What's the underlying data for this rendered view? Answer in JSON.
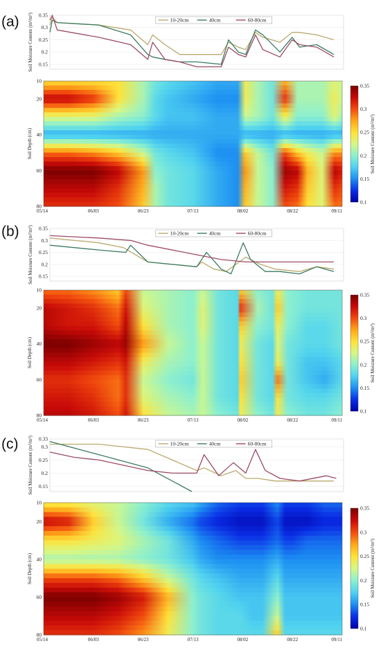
{
  "colors": {
    "line_10_20": "#b9a96c",
    "line_40": "#3b7a5f",
    "line_60_80": "#9c4a63",
    "colormap": [
      "#0000a8",
      "#0a2ee6",
      "#1d8ff2",
      "#4fd2f0",
      "#8cf0cf",
      "#d6f785",
      "#ffe23a",
      "#ffa61a",
      "#f24a0e",
      "#c80a08",
      "#7a0000"
    ]
  },
  "chart_data": [
    {
      "panel": "(a)",
      "type": "line",
      "ylabel": "Soil Moisture Content (m³/m³)",
      "ylim": [
        0.13,
        0.35
      ],
      "yticks": [
        "0.35",
        "0.3",
        "0.25",
        "0.2",
        "0.15"
      ],
      "xlim": [
        "05/14",
        "09/11"
      ],
      "grid": true,
      "legend": "top-center",
      "series": [
        {
          "name": "10-20cm",
          "x": [
            "05/14",
            "05/15",
            "05/17",
            "06/03",
            "06/16",
            "06/23",
            "06/25",
            "06/30",
            "07/06",
            "07/13",
            "07/23",
            "07/26",
            "07/30",
            "08/02",
            "08/06",
            "08/09",
            "08/16",
            "08/21",
            "08/24",
            "08/31",
            "09/07"
          ],
          "y": [
            0.31,
            0.34,
            0.32,
            0.31,
            0.29,
            0.23,
            0.27,
            0.23,
            0.19,
            0.19,
            0.19,
            0.24,
            0.22,
            0.21,
            0.28,
            0.26,
            0.24,
            0.28,
            0.28,
            0.27,
            0.25
          ]
        },
        {
          "name": "40cm",
          "x": [
            "05/14",
            "05/15",
            "05/17",
            "06/03",
            "06/16",
            "06/23",
            "06/25",
            "06/30",
            "07/06",
            "07/13",
            "07/23",
            "07/26",
            "07/30",
            "08/02",
            "08/06",
            "08/09",
            "08/16",
            "08/21",
            "08/24",
            "08/31",
            "09/07"
          ],
          "y": [
            0.28,
            0.33,
            0.32,
            0.31,
            0.27,
            0.19,
            0.18,
            0.17,
            0.16,
            0.16,
            0.15,
            0.25,
            0.2,
            0.19,
            0.29,
            0.27,
            0.2,
            0.26,
            0.22,
            0.23,
            0.19
          ]
        },
        {
          "name": "60-80cm",
          "x": [
            "05/14",
            "05/15",
            "05/17",
            "06/03",
            "06/16",
            "06/23",
            "06/25",
            "06/30",
            "07/06",
            "07/13",
            "07/23",
            "07/26",
            "07/30",
            "08/02",
            "08/06",
            "08/09",
            "08/16",
            "08/21",
            "08/24",
            "08/31",
            "09/07"
          ],
          "y": [
            0.33,
            0.35,
            0.29,
            0.26,
            0.23,
            0.17,
            0.24,
            0.17,
            0.16,
            0.14,
            0.14,
            0.22,
            0.19,
            0.18,
            0.27,
            0.21,
            0.18,
            0.25,
            0.23,
            0.22,
            0.18
          ]
        }
      ]
    },
    {
      "panel": "(a)",
      "type": "heatmap",
      "ylabel": "Soil Depth (cm)",
      "yticks": [
        10,
        20,
        40,
        60,
        80
      ],
      "xticks": [
        "05/14",
        "06/03",
        "06/23",
        "07/13",
        "08/02",
        "08/22",
        "09/11"
      ],
      "colorbar_label": "Soil Moisture Content (m³/m³)",
      "colorbar_range": [
        0.1,
        0.35
      ],
      "colorbar_ticks": [
        "0.35",
        "0.3",
        "0.25",
        "0.2",
        "0.15",
        "0.1"
      ],
      "depths": [
        10,
        20,
        30,
        40,
        50,
        60,
        70,
        80
      ],
      "dates": [
        "05/14",
        "05/24",
        "06/03",
        "06/13",
        "06/23",
        "06/28",
        "07/03",
        "07/13",
        "07/23",
        "07/31",
        "08/03",
        "08/08",
        "08/14",
        "08/19",
        "08/24",
        "08/28",
        "09/03",
        "09/08",
        "09/11"
      ],
      "values": [
        [
          0.25,
          0.25,
          0.25,
          0.25,
          0.21,
          0.19,
          0.18,
          0.17,
          0.16,
          0.16,
          0.24,
          0.21,
          0.19,
          0.27,
          0.21,
          0.21,
          0.21,
          0.23,
          0.22
        ],
        [
          0.33,
          0.33,
          0.31,
          0.25,
          0.21,
          0.18,
          0.17,
          0.16,
          0.15,
          0.15,
          0.24,
          0.21,
          0.19,
          0.31,
          0.21,
          0.21,
          0.21,
          0.24,
          0.22
        ],
        [
          0.23,
          0.23,
          0.23,
          0.21,
          0.2,
          0.18,
          0.17,
          0.17,
          0.16,
          0.16,
          0.22,
          0.21,
          0.19,
          0.24,
          0.2,
          0.2,
          0.2,
          0.23,
          0.21
        ],
        [
          0.16,
          0.16,
          0.16,
          0.16,
          0.16,
          0.16,
          0.16,
          0.16,
          0.16,
          0.16,
          0.16,
          0.16,
          0.16,
          0.16,
          0.16,
          0.16,
          0.16,
          0.16,
          0.16
        ],
        [
          0.29,
          0.29,
          0.28,
          0.26,
          0.22,
          0.19,
          0.18,
          0.17,
          0.15,
          0.15,
          0.26,
          0.22,
          0.19,
          0.3,
          0.26,
          0.24,
          0.22,
          0.28,
          0.28
        ],
        [
          0.35,
          0.35,
          0.35,
          0.33,
          0.28,
          0.2,
          0.19,
          0.18,
          0.16,
          0.15,
          0.28,
          0.22,
          0.2,
          0.34,
          0.33,
          0.27,
          0.23,
          0.33,
          0.32
        ],
        [
          0.33,
          0.33,
          0.33,
          0.31,
          0.27,
          0.21,
          0.19,
          0.18,
          0.16,
          0.15,
          0.27,
          0.22,
          0.2,
          0.32,
          0.31,
          0.26,
          0.23,
          0.31,
          0.3
        ],
        [
          0.31,
          0.31,
          0.31,
          0.3,
          0.26,
          0.21,
          0.19,
          0.18,
          0.16,
          0.15,
          0.26,
          0.22,
          0.2,
          0.3,
          0.29,
          0.25,
          0.23,
          0.29,
          0.29
        ]
      ]
    },
    {
      "panel": "(b)",
      "type": "line",
      "ylabel": "Soil Moisture Content (m³/m³)",
      "ylim": [
        0.13,
        0.35
      ],
      "yticks": [
        "0.35",
        "0.3",
        "0.25",
        "0.2",
        "0.15"
      ],
      "xlim": [
        "05/14",
        "09/11"
      ],
      "grid": true,
      "legend": "top-center",
      "series": [
        {
          "name": "10-20cm",
          "x": [
            "05/14",
            "06/03",
            "06/13",
            "06/23",
            "07/13",
            "07/15",
            "07/20",
            "07/25",
            "08/02",
            "08/08",
            "08/14",
            "08/24",
            "08/31",
            "09/07"
          ],
          "y": [
            0.31,
            0.29,
            0.27,
            0.21,
            0.19,
            0.21,
            0.18,
            0.17,
            0.23,
            0.2,
            0.18,
            0.17,
            0.19,
            0.18
          ]
        },
        {
          "name": "40cm",
          "x": [
            "05/14",
            "06/03",
            "06/14",
            "06/16",
            "06/23",
            "07/13",
            "07/17",
            "07/23",
            "07/27",
            "08/01",
            "08/04",
            "08/10",
            "08/16",
            "08/24",
            "08/31",
            "09/07"
          ],
          "y": [
            0.28,
            0.26,
            0.25,
            0.28,
            0.21,
            0.19,
            0.25,
            0.18,
            0.16,
            0.29,
            0.22,
            0.17,
            0.17,
            0.16,
            0.19,
            0.17
          ]
        },
        {
          "name": "60-80cm",
          "x": [
            "05/14",
            "06/03",
            "06/16",
            "06/23",
            "07/13",
            "07/23",
            "08/02",
            "08/14",
            "08/24",
            "09/07"
          ],
          "y": [
            0.32,
            0.31,
            0.3,
            0.28,
            0.24,
            0.22,
            0.21,
            0.21,
            0.21,
            0.21
          ]
        }
      ]
    },
    {
      "panel": "(b)",
      "type": "heatmap",
      "ylabel": "Soil Depth (cm)",
      "yticks": [
        10,
        20,
        40,
        60,
        80
      ],
      "xticks": [
        "05/14",
        "06/03",
        "06/23",
        "07/13",
        "08/02",
        "08/22",
        "09/11"
      ],
      "colorbar_label": "Soil Moisture Content (m³/m³)",
      "colorbar_range": [
        0.1,
        0.35
      ],
      "colorbar_ticks": [
        "0.35",
        "0.3",
        "0.25",
        "0.2",
        "0.15",
        "0.1"
      ],
      "depths": [
        10,
        20,
        30,
        40,
        50,
        60,
        70,
        80
      ],
      "dates": [
        "05/14",
        "05/24",
        "06/03",
        "06/13",
        "06/16",
        "06/23",
        "07/03",
        "07/13",
        "07/17",
        "07/23",
        "07/31",
        "08/01",
        "08/08",
        "08/14",
        "08/16",
        "08/20",
        "08/28",
        "09/04",
        "09/11"
      ],
      "values": [
        [
          0.29,
          0.29,
          0.28,
          0.26,
          0.3,
          0.22,
          0.21,
          0.2,
          0.22,
          0.19,
          0.18,
          0.26,
          0.2,
          0.19,
          0.24,
          0.2,
          0.19,
          0.19,
          0.19
        ],
        [
          0.33,
          0.32,
          0.31,
          0.29,
          0.32,
          0.23,
          0.21,
          0.2,
          0.23,
          0.19,
          0.18,
          0.31,
          0.21,
          0.19,
          0.26,
          0.2,
          0.19,
          0.19,
          0.19
        ],
        [
          0.33,
          0.32,
          0.32,
          0.3,
          0.33,
          0.25,
          0.21,
          0.2,
          0.23,
          0.19,
          0.18,
          0.26,
          0.2,
          0.19,
          0.24,
          0.2,
          0.18,
          0.18,
          0.19
        ],
        [
          0.35,
          0.35,
          0.34,
          0.33,
          0.34,
          0.28,
          0.22,
          0.2,
          0.22,
          0.19,
          0.18,
          0.24,
          0.19,
          0.18,
          0.23,
          0.19,
          0.18,
          0.18,
          0.19
        ],
        [
          0.33,
          0.33,
          0.32,
          0.31,
          0.32,
          0.24,
          0.21,
          0.2,
          0.22,
          0.19,
          0.18,
          0.25,
          0.19,
          0.18,
          0.24,
          0.19,
          0.17,
          0.17,
          0.18
        ],
        [
          0.31,
          0.31,
          0.3,
          0.29,
          0.31,
          0.22,
          0.2,
          0.19,
          0.22,
          0.19,
          0.18,
          0.26,
          0.19,
          0.18,
          0.29,
          0.19,
          0.17,
          0.16,
          0.18
        ],
        [
          0.32,
          0.32,
          0.31,
          0.29,
          0.31,
          0.23,
          0.21,
          0.2,
          0.22,
          0.19,
          0.18,
          0.25,
          0.19,
          0.18,
          0.25,
          0.19,
          0.18,
          0.18,
          0.19
        ],
        [
          0.33,
          0.33,
          0.32,
          0.3,
          0.32,
          0.25,
          0.22,
          0.21,
          0.22,
          0.2,
          0.19,
          0.24,
          0.2,
          0.19,
          0.24,
          0.2,
          0.19,
          0.19,
          0.2
        ]
      ]
    },
    {
      "panel": "(c)",
      "type": "line",
      "ylabel": "Soil Moisture Content (m³/m³)",
      "ylim": [
        0.13,
        0.33
      ],
      "yticks": [
        "0.33",
        "0.3",
        "0.25",
        "0.2",
        "0.15"
      ],
      "xlim": [
        "05/14",
        "09/11"
      ],
      "grid": true,
      "legend": "top-center",
      "series": [
        {
          "name": "10-20cm",
          "x": [
            "05/14",
            "06/03",
            "06/13",
            "06/23",
            "07/03",
            "07/13",
            "07/16",
            "07/23",
            "07/29",
            "08/02",
            "08/07",
            "08/14",
            "08/24",
            "08/31",
            "09/07"
          ],
          "y": [
            0.31,
            0.31,
            0.3,
            0.29,
            0.25,
            0.21,
            0.22,
            0.19,
            0.21,
            0.18,
            0.18,
            0.17,
            0.17,
            0.17,
            0.17
          ]
        },
        {
          "name": "40cm",
          "x": [
            "05/14",
            "06/03",
            "06/23",
            "07/03",
            "07/11"
          ],
          "y": [
            0.32,
            0.27,
            0.22,
            0.17,
            0.13
          ]
        },
        {
          "name": "60-80cm",
          "x": [
            "05/14",
            "05/24",
            "06/03",
            "06/13",
            "06/23",
            "07/03",
            "07/13",
            "07/16",
            "07/22",
            "07/28",
            "08/02",
            "08/06",
            "08/10",
            "08/16",
            "08/24",
            "09/04",
            "09/08"
          ],
          "y": [
            0.28,
            0.26,
            0.25,
            0.23,
            0.21,
            0.2,
            0.2,
            0.27,
            0.19,
            0.24,
            0.2,
            0.29,
            0.21,
            0.18,
            0.17,
            0.19,
            0.18
          ]
        }
      ]
    },
    {
      "panel": "(c)",
      "type": "heatmap",
      "ylabel": "Soil Depth (cm)",
      "yticks": [
        10,
        20,
        40,
        60,
        80
      ],
      "xticks": [
        "05/14",
        "06/03",
        "06/23",
        "07/13",
        "08/02",
        "08/22",
        "09/11"
      ],
      "colorbar_label": "Soil Moisture Content (m³/m³)",
      "colorbar_range": [
        0.1,
        0.35
      ],
      "colorbar_ticks": [
        "0.35",
        "0.3",
        "0.25",
        "0.2",
        "0.15",
        "0.1"
      ],
      "depths": [
        10,
        20,
        30,
        40,
        50,
        60,
        70,
        80
      ],
      "dates": [
        "05/14",
        "05/24",
        "06/03",
        "06/13",
        "06/23",
        "07/03",
        "07/13",
        "07/16",
        "07/23",
        "08/01",
        "08/06",
        "08/10",
        "08/16",
        "08/19",
        "08/22",
        "08/28",
        "09/04",
        "09/11"
      ],
      "values": [
        [
          0.24,
          0.24,
          0.23,
          0.22,
          0.2,
          0.18,
          0.17,
          0.16,
          0.14,
          0.13,
          0.13,
          0.13,
          0.15,
          0.13,
          0.13,
          0.13,
          0.14,
          0.14
        ],
        [
          0.33,
          0.32,
          0.26,
          0.22,
          0.19,
          0.16,
          0.14,
          0.13,
          0.12,
          0.11,
          0.11,
          0.11,
          0.13,
          0.11,
          0.11,
          0.11,
          0.12,
          0.12
        ],
        [
          0.25,
          0.25,
          0.24,
          0.23,
          0.21,
          0.19,
          0.16,
          0.15,
          0.14,
          0.13,
          0.13,
          0.13,
          0.14,
          0.13,
          0.13,
          0.14,
          0.14,
          0.14
        ],
        [
          0.21,
          0.21,
          0.21,
          0.21,
          0.2,
          0.19,
          0.17,
          0.16,
          0.15,
          0.15,
          0.15,
          0.15,
          0.16,
          0.15,
          0.15,
          0.15,
          0.15,
          0.15
        ],
        [
          0.3,
          0.3,
          0.3,
          0.29,
          0.26,
          0.22,
          0.19,
          0.18,
          0.17,
          0.16,
          0.16,
          0.16,
          0.18,
          0.16,
          0.16,
          0.16,
          0.16,
          0.16
        ],
        [
          0.35,
          0.35,
          0.35,
          0.34,
          0.32,
          0.27,
          0.2,
          0.19,
          0.18,
          0.17,
          0.17,
          0.17,
          0.2,
          0.17,
          0.17,
          0.17,
          0.17,
          0.17
        ],
        [
          0.33,
          0.33,
          0.33,
          0.32,
          0.3,
          0.25,
          0.2,
          0.19,
          0.18,
          0.18,
          0.17,
          0.17,
          0.22,
          0.17,
          0.17,
          0.17,
          0.17,
          0.17
        ],
        [
          0.31,
          0.31,
          0.31,
          0.3,
          0.28,
          0.24,
          0.2,
          0.19,
          0.18,
          0.18,
          0.18,
          0.18,
          0.26,
          0.18,
          0.18,
          0.18,
          0.18,
          0.18
        ]
      ]
    }
  ]
}
